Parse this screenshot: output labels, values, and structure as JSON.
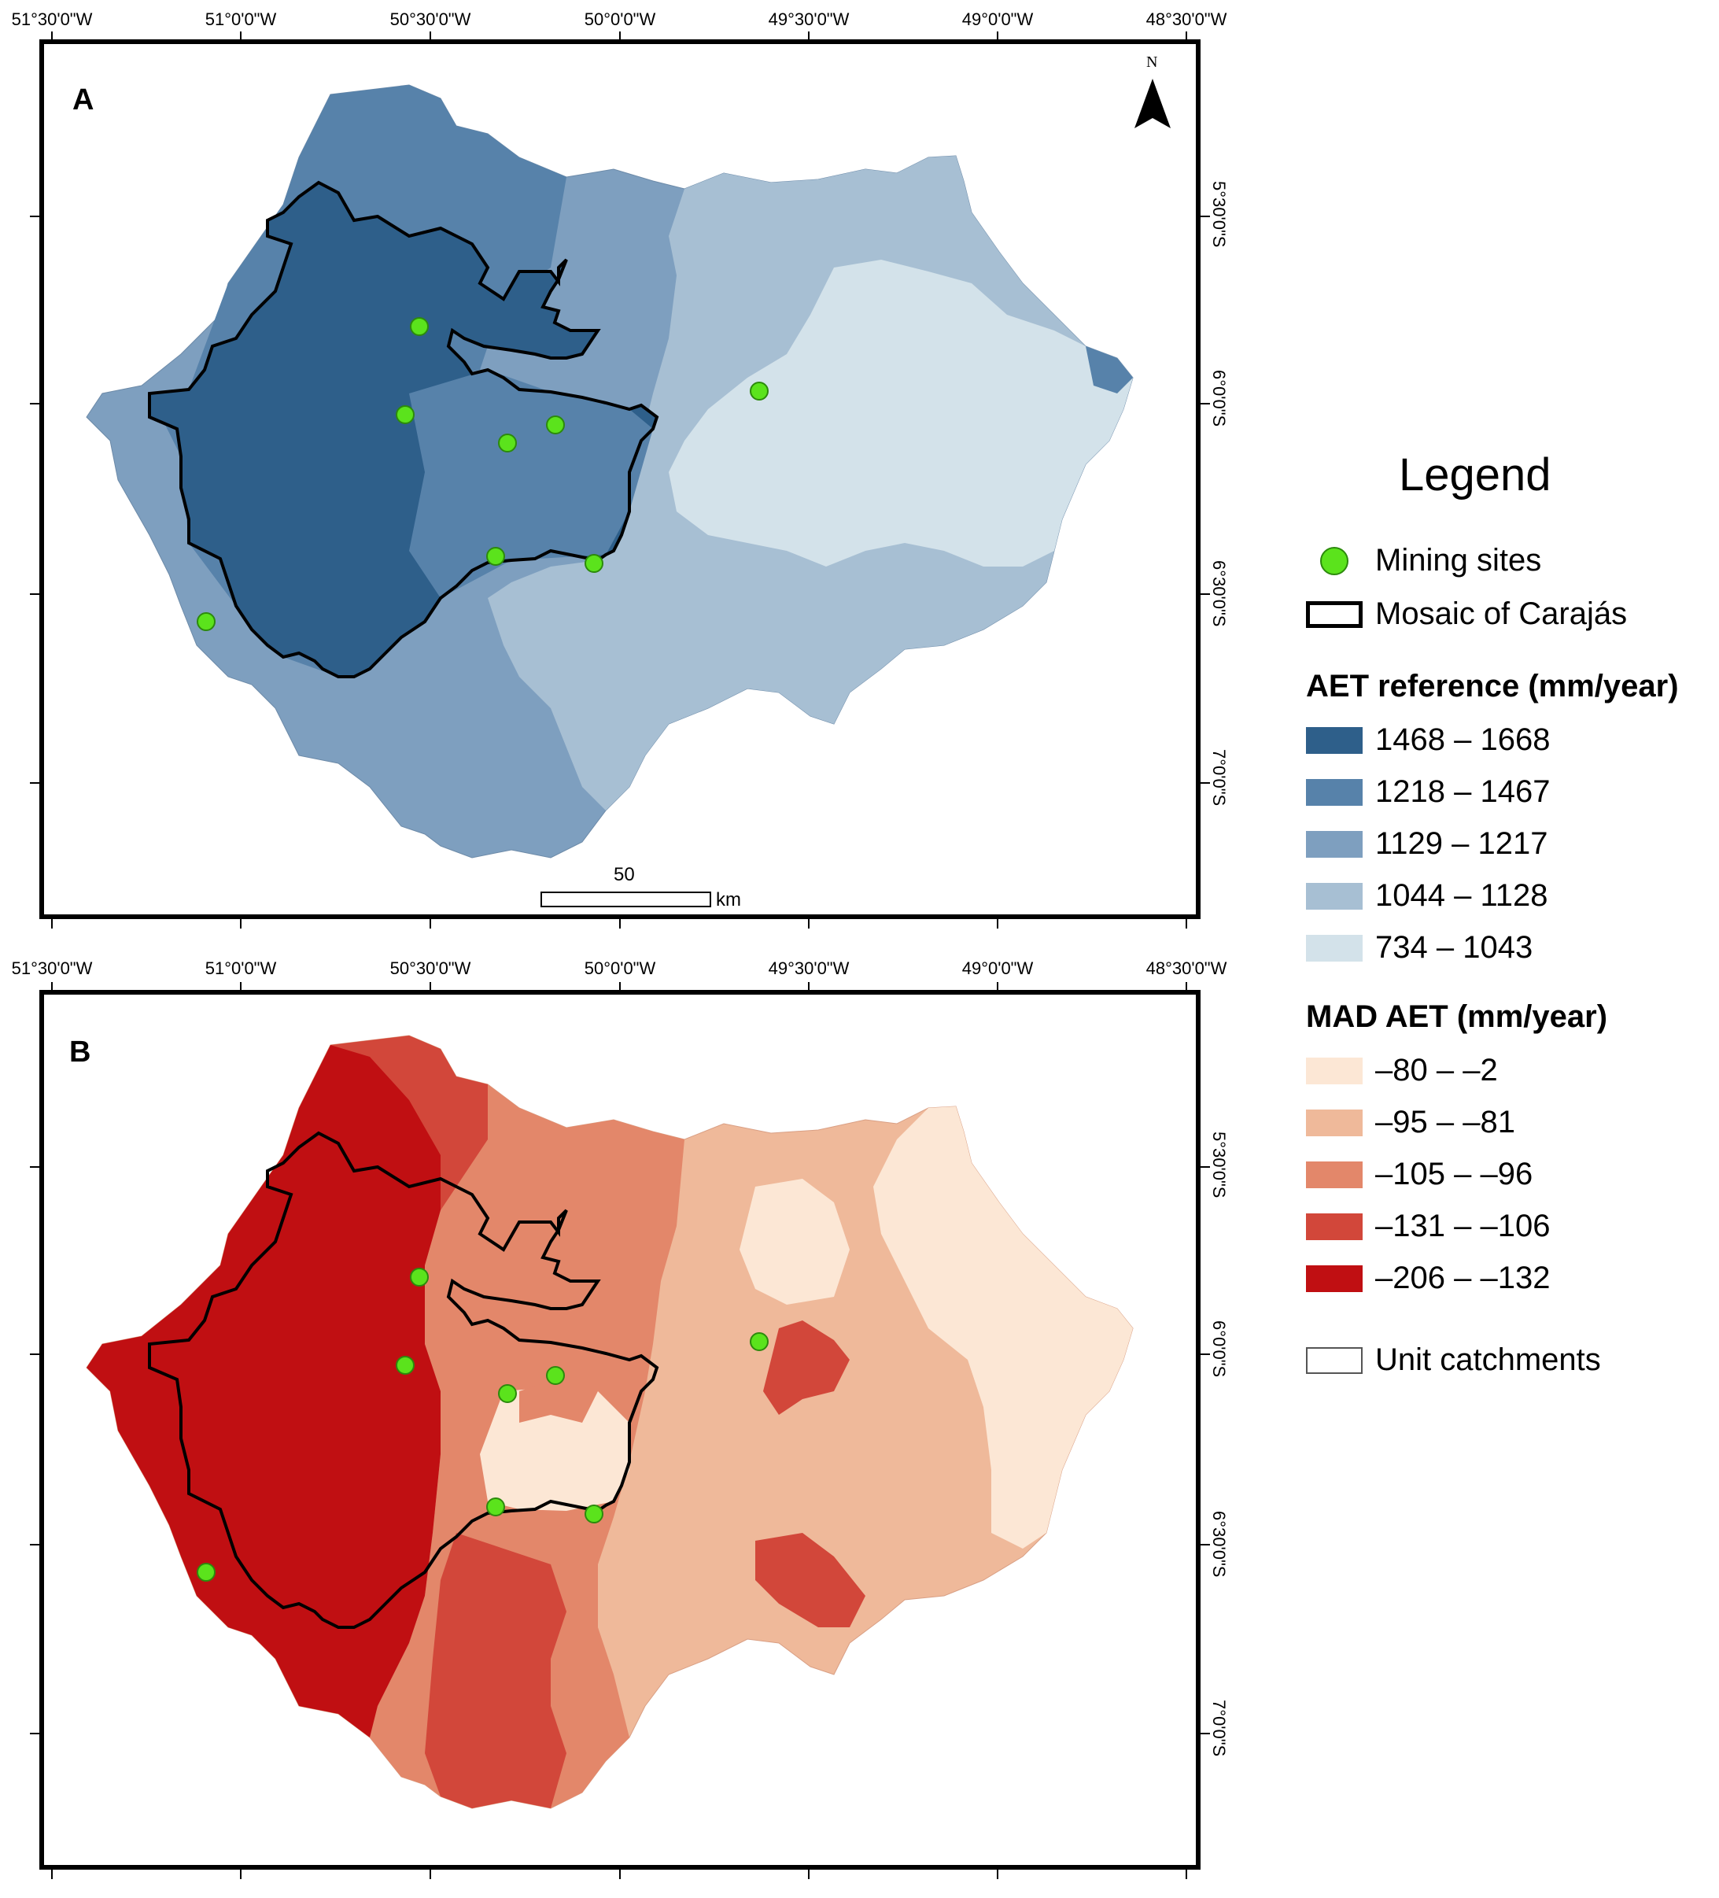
{
  "longitude_labels": [
    "51°30'0\"W",
    "51°0'0\"W",
    "50°30'0\"W",
    "50°0'0\"W",
    "49°30'0\"W",
    "49°0'0\"W",
    "48°30'0\"W"
  ],
  "latitude_labels": [
    "5°30'0\"S",
    "6°0'0\"S",
    "6°30'0\"S",
    "7°0'0\"S"
  ],
  "panels": {
    "a": {
      "label": "A"
    },
    "b": {
      "label": "B"
    }
  },
  "north_arrow": {
    "label": "N"
  },
  "scale_bar": {
    "value": "50",
    "unit": "km"
  },
  "legend": {
    "title": "Legend",
    "mining_sites": "Mining sites",
    "mosaic": "Mosaic of Carajás",
    "aet_title": "AET reference (mm/year)",
    "aet_classes": [
      {
        "label": "1468 – 1668",
        "color": "#2e5f8a"
      },
      {
        "label": "1218 – 1467",
        "color": "#5782aa"
      },
      {
        "label": "1129 – 1217",
        "color": "#7e9fbf"
      },
      {
        "label": "1044 – 1128",
        "color": "#a7bfd3"
      },
      {
        "label": "734 – 1043",
        "color": "#d3e2ea"
      }
    ],
    "mad_title": "MAD AET (mm/year)",
    "mad_classes": [
      {
        "label": "–80 – –2",
        "color": "#fce7d5"
      },
      {
        "label": "–95 – –81",
        "color": "#efb99a"
      },
      {
        "label": "–105 – –96",
        "color": "#e3876a"
      },
      {
        "label": "–131 – –106",
        "color": "#d2473a"
      },
      {
        "label": "–206 – –132",
        "color": "#c00f12"
      }
    ],
    "unit_catchments": "Unit catchments"
  },
  "colors": {
    "mining_site": "#5be31c",
    "outline": "#000000"
  }
}
